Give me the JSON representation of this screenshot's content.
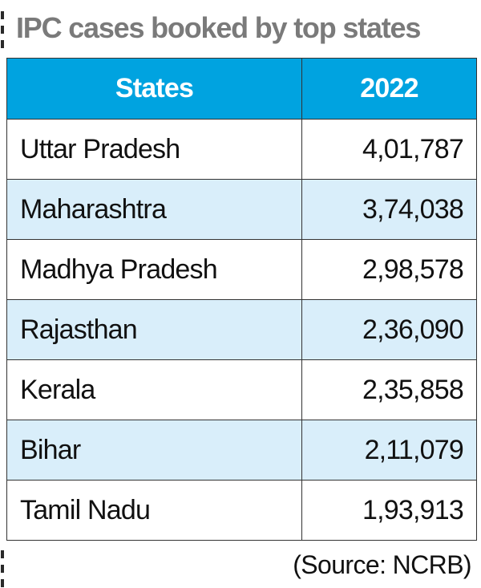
{
  "title": "IPC cases booked by top states",
  "chart_data": {
    "type": "table",
    "title": "IPC cases booked by top states",
    "columns": [
      "States",
      "2022"
    ],
    "rows": [
      {
        "state": "Uttar Pradesh",
        "value": "4,01,787"
      },
      {
        "state": "Maharashtra",
        "value": "3,74,038"
      },
      {
        "state": "Madhya Pradesh",
        "value": "2,98,578"
      },
      {
        "state": "Rajasthan",
        "value": "2,36,090"
      },
      {
        "state": "Kerala",
        "value": "2,35,858"
      },
      {
        "state": "Bihar",
        "value": "2,11,079"
      },
      {
        "state": "Tamil Nadu",
        "value": "1,93,913"
      }
    ],
    "values": [
      401787,
      374038,
      298578,
      236090,
      235858,
      211079,
      193913
    ]
  },
  "source": "(Source: NCRB)",
  "colors": {
    "header_bg": "#00a3e0",
    "alt_row_bg": "#d9eefa",
    "title": "#7a7a7a"
  }
}
